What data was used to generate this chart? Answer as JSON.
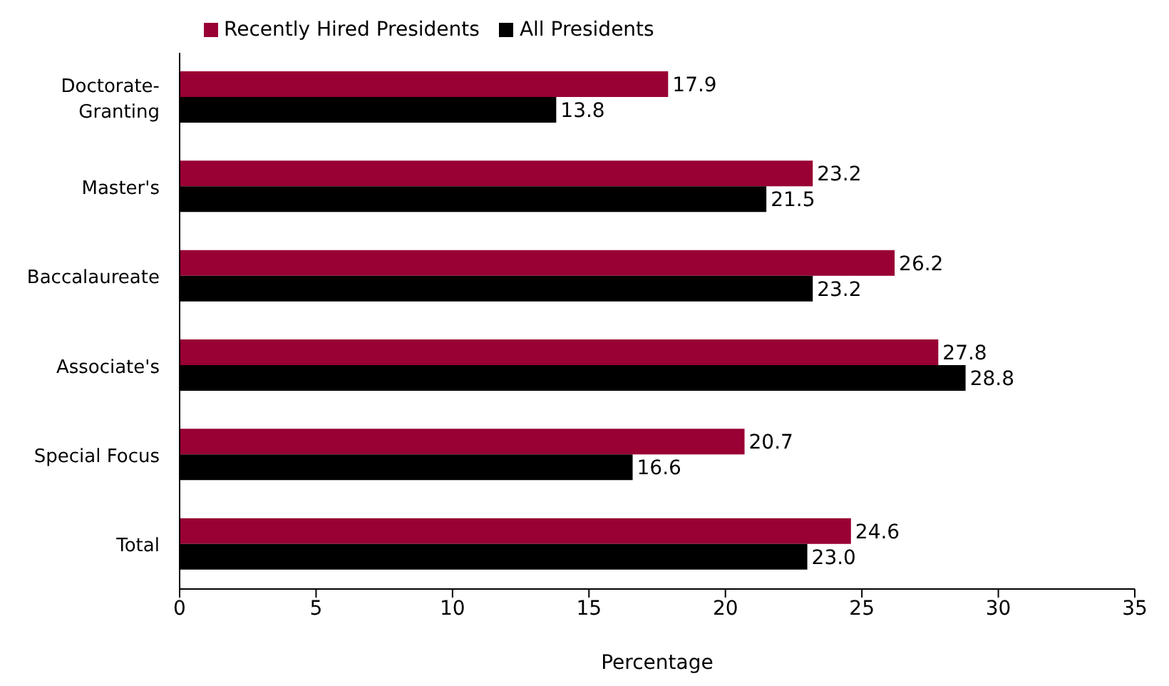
{
  "chart_data": {
    "type": "bar",
    "orientation": "horizontal",
    "xlabel": "Percentage",
    "categories": [
      "Doctorate-Granting",
      "Master's",
      "Baccalaureate",
      "Associate's",
      "Special Focus",
      "Total"
    ],
    "series": [
      {
        "name": "Recently Hired Presidents",
        "color": "#990033",
        "values": [
          17.9,
          23.2,
          26.2,
          27.8,
          20.7,
          24.6
        ],
        "value_labels": [
          "17.9",
          "23.2",
          "26.2",
          "27.8",
          "20.7",
          "24.6"
        ]
      },
      {
        "name": "All Presidents",
        "color": "#000000",
        "values": [
          13.8,
          21.5,
          23.2,
          28.8,
          16.6,
          23.0
        ],
        "value_labels": [
          "13.8",
          "21.5",
          "23.2",
          "28.8",
          "16.6",
          "23.0"
        ]
      }
    ],
    "xlim": [
      0,
      35
    ],
    "xticks": [
      0,
      5,
      10,
      15,
      20,
      25,
      30,
      35
    ],
    "grid": false,
    "legend": "top left"
  }
}
